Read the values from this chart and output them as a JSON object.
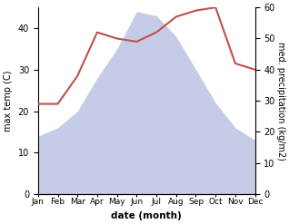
{
  "months": [
    "Jan",
    "Feb",
    "Mar",
    "Apr",
    "May",
    "Jun",
    "Jul",
    "Aug",
    "Sep",
    "Oct",
    "Nov",
    "Dec"
  ],
  "temperature": [
    14,
    16,
    20,
    28,
    35,
    44,
    43,
    38,
    30,
    22,
    16,
    13
  ],
  "precipitation": [
    29,
    29,
    38,
    52,
    50,
    49,
    52,
    57,
    59,
    60,
    42,
    40
  ],
  "temp_fill_color": "#c5cce8",
  "precip_color": "#c0504d",
  "ylabel_left": "max temp (C)",
  "ylabel_right": "med. precipitation (kg/m2)",
  "xlabel": "date (month)",
  "ylim_left": [
    0,
    45
  ],
  "ylim_right": [
    0,
    60
  ],
  "yticks_left": [
    0,
    10,
    20,
    30,
    40
  ],
  "yticks_right": [
    0,
    10,
    20,
    30,
    40,
    50,
    60
  ],
  "background_color": "#ffffff"
}
